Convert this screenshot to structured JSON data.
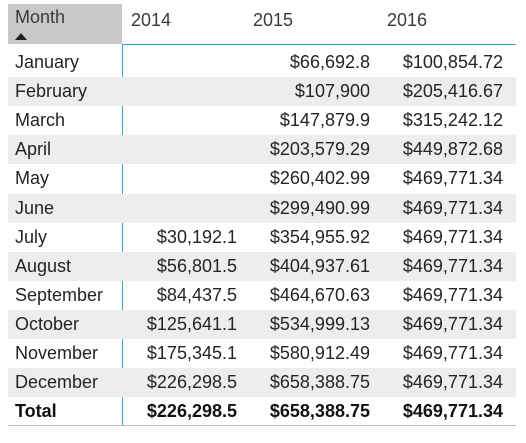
{
  "header": {
    "columns": [
      "Month",
      "2014",
      "2015",
      "2016"
    ]
  },
  "table": {
    "rows": [
      [
        "January",
        null,
        "$66,692.8",
        "$100,854.72"
      ],
      [
        "February",
        null,
        "$107,900",
        "$205,416.67"
      ],
      [
        "March",
        null,
        "$147,879.9",
        "$315,242.12"
      ],
      [
        "April",
        null,
        "$203,579.29",
        "$449,872.68"
      ],
      [
        "May",
        null,
        "$260,402.99",
        "$469,771.34"
      ],
      [
        "June",
        null,
        "$299,490.99",
        "$469,771.34"
      ],
      [
        "July",
        "$30,192.1",
        "$354,955.92",
        "$469,771.34"
      ],
      [
        "August",
        "$56,801.5",
        "$404,937.61",
        "$469,771.34"
      ],
      [
        "September",
        "$84,437.5",
        "$464,670.63",
        "$469,771.34"
      ],
      [
        "October",
        "$125,641.1",
        "$534,999.13",
        "$469,771.34"
      ],
      [
        "November",
        "$175,345.1",
        "$580,912.49",
        "$469,771.34"
      ],
      [
        "December",
        "$226,298.5",
        "$658,388.75",
        "$469,771.34"
      ]
    ]
  },
  "total": [
    "Total",
    "$226,298.5",
    "$658,388.75",
    "$469,771.34"
  ]
}
